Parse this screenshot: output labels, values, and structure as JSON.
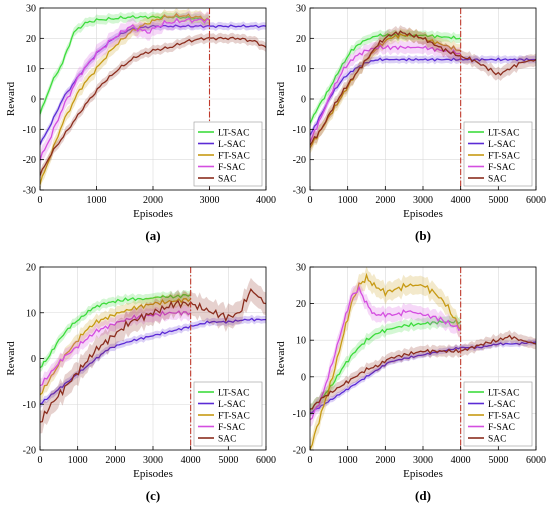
{
  "figure": {
    "legend_names": [
      "LT-SAC",
      "L-SAC",
      "FT-SAC",
      "F-SAC",
      "SAC"
    ],
    "colors": {
      "LT-SAC": "#3ddc3d",
      "L-SAC": "#5b2bd6",
      "FT-SAC": "#c79a14",
      "F-SAC": "#d44ee0",
      "SAC": "#8b2d1e",
      "divider": "#c0392b"
    }
  },
  "chart_data": [
    {
      "id": "a",
      "type": "line",
      "caption": "(a)",
      "xlabel": "Episodes",
      "ylabel": "Reward",
      "xlim": [
        0,
        4000
      ],
      "ylim": [
        -30,
        30
      ],
      "xticks": [
        0,
        1000,
        2000,
        3000,
        4000
      ],
      "yticks": [
        -30,
        -20,
        -10,
        0,
        10,
        20,
        30
      ],
      "show_xlabel": true,
      "show_ylabel": true,
      "vline": 3000,
      "legend_placement": "bottom-right",
      "series": [
        {
          "name": "LT-SAC",
          "x": [
            0,
            200,
            400,
            600,
            800,
            1000,
            1300,
            1600,
            2000,
            2400,
            2800,
            3000
          ],
          "y": [
            -5,
            5,
            12,
            22,
            25,
            26,
            26.5,
            27,
            27,
            27,
            26.5,
            26
          ],
          "band": 1.5
        },
        {
          "name": "L-SAC",
          "x": [
            0,
            200,
            400,
            700,
            1000,
            1300,
            1600,
            2000,
            2400,
            2800,
            3200,
            3600,
            4000
          ],
          "y": [
            -15,
            -8,
            0,
            8,
            15,
            20,
            23,
            24,
            24,
            24,
            24,
            24,
            24
          ],
          "band": 1.2
        },
        {
          "name": "FT-SAC",
          "x": [
            0,
            200,
            400,
            700,
            1000,
            1300,
            1600,
            1900,
            2200,
            2500,
            2800,
            3000
          ],
          "y": [
            -28,
            -18,
            -8,
            3,
            10,
            17,
            22,
            25,
            27,
            27.5,
            27,
            26
          ],
          "band": 2
        },
        {
          "name": "F-SAC",
          "x": [
            0,
            200,
            400,
            700,
            1000,
            1300,
            1600,
            1900,
            2200,
            2600,
            3000
          ],
          "y": [
            -20,
            -12,
            -3,
            8,
            15,
            20,
            24,
            22,
            25,
            26,
            26
          ],
          "band": 2.5
        },
        {
          "name": "SAC",
          "x": [
            0,
            200,
            500,
            800,
            1100,
            1400,
            1700,
            2000,
            2300,
            2600,
            2900,
            3200,
            3500,
            3800,
            4000
          ],
          "y": [
            -25,
            -18,
            -10,
            -2,
            5,
            10,
            14,
            16,
            17,
            19,
            20,
            20,
            20,
            19,
            17
          ],
          "band": 1.5
        }
      ]
    },
    {
      "id": "b",
      "type": "line",
      "caption": "(b)",
      "xlabel": "Episodes",
      "ylabel": "Reward",
      "xlim": [
        0,
        6000
      ],
      "ylim": [
        -30,
        30
      ],
      "xticks": [
        0,
        1000,
        2000,
        3000,
        4000,
        5000,
        6000
      ],
      "yticks": [
        -30,
        -20,
        -10,
        0,
        10,
        20,
        30
      ],
      "show_xlabel": true,
      "show_ylabel": true,
      "vline": 4000,
      "legend_placement": "bottom-right",
      "series": [
        {
          "name": "LT-SAC",
          "x": [
            0,
            200,
            500,
            800,
            1100,
            1400,
            1800,
            2200,
            2600,
            3000,
            3500,
            4000
          ],
          "y": [
            -8,
            -3,
            3,
            10,
            16,
            19,
            21,
            21,
            21,
            21,
            20.5,
            20
          ],
          "band": 1.5
        },
        {
          "name": "L-SAC",
          "x": [
            0,
            300,
            600,
            900,
            1200,
            1500,
            1800,
            2100,
            2500,
            3000,
            3500,
            4000,
            4500,
            5000,
            5500,
            6000
          ],
          "y": [
            -12,
            -5,
            2,
            7,
            10,
            12,
            13,
            13,
            13,
            13,
            13,
            13,
            13,
            13,
            13,
            13
          ],
          "band": 1.2
        },
        {
          "name": "FT-SAC",
          "x": [
            0,
            300,
            600,
            900,
            1200,
            1500,
            1800,
            2100,
            2400,
            2700,
            3000,
            3500,
            4000
          ],
          "y": [
            -16,
            -10,
            -4,
            2,
            8,
            13,
            17,
            20,
            21,
            21,
            20,
            18,
            16
          ],
          "band": 2
        },
        {
          "name": "F-SAC",
          "x": [
            0,
            300,
            600,
            900,
            1200,
            1500,
            1800,
            2200,
            2600,
            3000,
            3500,
            4000
          ],
          "y": [
            -14,
            -6,
            3,
            10,
            14,
            16,
            17,
            17,
            17,
            17,
            16,
            15
          ],
          "band": 2
        },
        {
          "name": "SAC",
          "x": [
            0,
            300,
            600,
            900,
            1200,
            1500,
            1800,
            2100,
            2400,
            2700,
            3000,
            3300,
            3600,
            4000,
            4300,
            4600,
            5000,
            5300,
            5600,
            6000
          ],
          "y": [
            -15,
            -10,
            -3,
            3,
            8,
            13,
            18,
            21,
            22,
            21,
            20,
            18,
            16,
            14,
            13,
            11,
            8,
            10,
            12,
            13
          ],
          "band": 2
        }
      ]
    },
    {
      "id": "c",
      "type": "line",
      "caption": "(c)",
      "xlabel": "Episodes",
      "ylabel": "Reward",
      "xlim": [
        0,
        6000
      ],
      "ylim": [
        -20,
        20
      ],
      "xticks": [
        0,
        1000,
        2000,
        3000,
        4000,
        5000,
        6000
      ],
      "yticks": [
        -20,
        -10,
        0,
        10,
        20
      ],
      "show_xlabel": true,
      "show_ylabel": true,
      "vline": 4000,
      "legend_placement": "bottom-right",
      "series": [
        {
          "name": "LT-SAC",
          "x": [
            0,
            200,
            500,
            800,
            1100,
            1400,
            1700,
            2000,
            2400,
            2800,
            3200,
            3600,
            4000
          ],
          "y": [
            -2,
            0,
            4,
            7,
            9,
            11,
            12,
            12.5,
            13,
            13,
            13.5,
            13.5,
            14
          ],
          "band": 1
        },
        {
          "name": "L-SAC",
          "x": [
            0,
            300,
            600,
            900,
            1200,
            1500,
            1800,
            2100,
            2500,
            3000,
            3500,
            4000,
            4500,
            5000,
            5500,
            6000
          ],
          "y": [
            -10,
            -8,
            -6,
            -4,
            -2,
            0,
            2,
            3,
            4,
            5,
            6,
            7,
            8,
            8,
            8.5,
            8.5
          ],
          "band": 0.8
        },
        {
          "name": "FT-SAC",
          "x": [
            0,
            300,
            600,
            900,
            1200,
            1500,
            1800,
            2100,
            2500,
            3000,
            3500,
            4000
          ],
          "y": [
            -8,
            -4,
            0,
            3,
            6,
            8,
            9,
            10,
            11,
            12,
            12.5,
            13
          ],
          "band": 1.5
        },
        {
          "name": "F-SAC",
          "x": [
            0,
            300,
            600,
            900,
            1200,
            1500,
            1800,
            2100,
            2500,
            3000,
            3500,
            4000
          ],
          "y": [
            -6,
            -3,
            0,
            2,
            4,
            6,
            7,
            8,
            9,
            9.5,
            10,
            10
          ],
          "band": 1.5
        },
        {
          "name": "SAC",
          "x": [
            0,
            300,
            600,
            900,
            1200,
            1500,
            1800,
            2100,
            2400,
            2700,
            3000,
            3300,
            3600,
            4000,
            4300,
            4600,
            5000,
            5300,
            5600,
            6000
          ],
          "y": [
            -14,
            -10,
            -7,
            -4,
            -1,
            2,
            4,
            6,
            8,
            9,
            10,
            11,
            12,
            12,
            11,
            10,
            9,
            10,
            15,
            12
          ],
          "band": 2.5
        }
      ]
    },
    {
      "id": "d",
      "type": "line",
      "caption": "(d)",
      "xlabel": "Episodes",
      "ylabel": "Reward",
      "xlim": [
        0,
        6000
      ],
      "ylim": [
        -20,
        30
      ],
      "xticks": [
        0,
        1000,
        2000,
        3000,
        4000,
        5000,
        6000
      ],
      "yticks": [
        -20,
        -10,
        0,
        10,
        20,
        30
      ],
      "show_xlabel": true,
      "show_ylabel": true,
      "vline": 4000,
      "legend_placement": "bottom-right",
      "series": [
        {
          "name": "LT-SAC",
          "x": [
            0,
            300,
            600,
            900,
            1200,
            1500,
            1800,
            2100,
            2500,
            3000,
            3500,
            4000
          ],
          "y": [
            -9,
            -6,
            -2,
            3,
            7,
            10,
            12,
            13,
            14,
            14.5,
            15,
            15
          ],
          "band": 1.5
        },
        {
          "name": "L-SAC",
          "x": [
            0,
            300,
            600,
            900,
            1200,
            1500,
            1800,
            2100,
            2500,
            3000,
            3500,
            4000,
            4500,
            5000,
            5500,
            6000
          ],
          "y": [
            -10,
            -8,
            -6,
            -4,
            -2,
            0,
            2,
            4,
            5,
            6,
            7,
            8,
            8,
            9,
            9,
            9.5
          ],
          "band": 0.8
        },
        {
          "name": "FT-SAC",
          "x": [
            0,
            300,
            600,
            900,
            1100,
            1300,
            1500,
            1700,
            2000,
            2300,
            2600,
            3000,
            3300,
            3600,
            4000
          ],
          "y": [
            -20,
            -10,
            0,
            12,
            20,
            25,
            27,
            25,
            23,
            24,
            25,
            25,
            23,
            20,
            13
          ],
          "band": 2.5
        },
        {
          "name": "F-SAC",
          "x": [
            0,
            300,
            600,
            900,
            1100,
            1300,
            1500,
            1700,
            2000,
            2300,
            2600,
            3000,
            3400,
            3800,
            4000
          ],
          "y": [
            -12,
            -6,
            4,
            15,
            22,
            24,
            20,
            17,
            17,
            17,
            18,
            17,
            16,
            14,
            13
          ],
          "band": 2
        },
        {
          "name": "SAC",
          "x": [
            0,
            300,
            600,
            900,
            1200,
            1500,
            1800,
            2100,
            2500,
            3000,
            3500,
            4000,
            4300,
            4600,
            5000,
            5300,
            5600,
            6000
          ],
          "y": [
            -9,
            -6,
            -4,
            -2,
            0,
            2,
            3,
            5,
            6,
            7,
            7,
            7,
            8,
            9,
            10,
            11,
            10,
            9
          ],
          "band": 1.5
        }
      ]
    }
  ]
}
